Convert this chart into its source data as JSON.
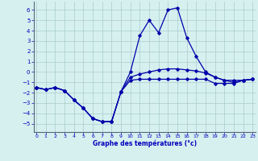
{
  "title": "Graphe des températures (°c)",
  "background_color": "#d6f0f0",
  "grid_color": "#aacccc",
  "line_color": "#0000aa",
  "spine_color": "#556677",
  "x_ticks": [
    0,
    1,
    2,
    3,
    4,
    5,
    6,
    7,
    8,
    9,
    10,
    11,
    12,
    13,
    14,
    15,
    16,
    17,
    18,
    19,
    20,
    21,
    22,
    23
  ],
  "ylim": [
    -5.8,
    6.8
  ],
  "xlim": [
    -0.3,
    23.3
  ],
  "yticks": [
    -5,
    -4,
    -3,
    -2,
    -1,
    0,
    1,
    2,
    3,
    4,
    5,
    6
  ],
  "series": [
    {
      "x": [
        0,
        1,
        2,
        3,
        4,
        5,
        6,
        7,
        8,
        9,
        10,
        11,
        12,
        13,
        14,
        15,
        16,
        17,
        18,
        19,
        20,
        21,
        22,
        23
      ],
      "y": [
        -1.5,
        -1.7,
        -1.5,
        -1.8,
        -2.7,
        -3.5,
        -4.5,
        -4.8,
        -4.8,
        -1.9,
        -0.8,
        -0.7,
        -0.7,
        -0.7,
        -0.7,
        -0.7,
        -0.7,
        -0.7,
        -0.7,
        -1.1,
        -1.1,
        -1.1,
        -0.8,
        -0.7
      ]
    },
    {
      "x": [
        0,
        1,
        2,
        3,
        4,
        5,
        6,
        7,
        8,
        9,
        10,
        11,
        12,
        13,
        14,
        15,
        16,
        17,
        18,
        19,
        20,
        21,
        22,
        23
      ],
      "y": [
        -1.5,
        -1.7,
        -1.5,
        -1.8,
        -2.7,
        -3.5,
        -4.5,
        -4.8,
        -4.8,
        -1.9,
        -0.5,
        -0.2,
        0.0,
        0.2,
        0.3,
        0.3,
        0.2,
        0.1,
        -0.1,
        -0.5,
        -0.8,
        -0.8,
        -0.8,
        -0.7
      ]
    },
    {
      "x": [
        0,
        1,
        2,
        3,
        4,
        5,
        6,
        7,
        8,
        9,
        10,
        11,
        12,
        13,
        14,
        15,
        16,
        17,
        18,
        19,
        20,
        21,
        22,
        23
      ],
      "y": [
        -1.5,
        -1.7,
        -1.5,
        -1.8,
        -2.7,
        -3.5,
        -4.5,
        -4.8,
        -4.8,
        -1.9,
        0.0,
        3.5,
        5.0,
        3.8,
        6.0,
        6.2,
        3.3,
        1.5,
        0.0,
        -0.5,
        -0.8,
        -1.0,
        -0.8,
        -0.7
      ]
    }
  ]
}
